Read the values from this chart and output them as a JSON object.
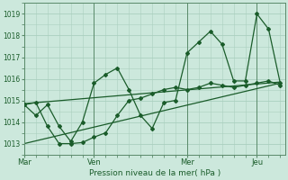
{
  "title": "",
  "xlabel": "Pression niveau de la mer( hPa )",
  "bg_color": "#cce8dc",
  "grid_color": "#aacfbf",
  "line_color": "#1a5c2a",
  "text_color": "#1a5c2a",
  "ylim": [
    1012.5,
    1019.5
  ],
  "yticks": [
    1013,
    1014,
    1015,
    1016,
    1017,
    1018,
    1019
  ],
  "x_ticks": [
    0,
    3,
    7,
    10
  ],
  "x_tick_labels": [
    "Mar",
    "Ven",
    "Mer",
    "Jeu"
  ],
  "vlines": [
    0,
    3,
    7,
    10
  ],
  "series1_x": [
    0,
    0.5,
    1,
    1.5,
    2,
    2.5,
    3,
    3.5,
    4,
    4.5,
    5,
    5.5,
    6,
    6.5,
    7,
    7.5,
    8,
    8.5,
    9,
    9.5,
    10,
    10.5,
    11
  ],
  "series1_y": [
    1014.8,
    1014.3,
    1014.8,
    1013.8,
    1013.1,
    1014.0,
    1015.8,
    1016.2,
    1016.5,
    1015.5,
    1014.3,
    1013.7,
    1014.9,
    1015.0,
    1017.2,
    1017.7,
    1018.2,
    1017.6,
    1015.9,
    1015.9,
    1019.0,
    1018.3,
    1015.8
  ],
  "series2_x": [
    0,
    0.5,
    1,
    1.5,
    2,
    2.5,
    3,
    3.5,
    4,
    4.5,
    5,
    5.5,
    6,
    6.5,
    7,
    7.5,
    8,
    8.5,
    9,
    9.5,
    10,
    10.5,
    11
  ],
  "series2_y": [
    1014.8,
    1014.9,
    1013.8,
    1013.0,
    1013.0,
    1013.05,
    1013.3,
    1013.5,
    1014.3,
    1015.0,
    1015.1,
    1015.3,
    1015.5,
    1015.6,
    1015.5,
    1015.6,
    1015.8,
    1015.7,
    1015.6,
    1015.7,
    1015.8,
    1015.9,
    1015.7
  ],
  "trend1_x": [
    0,
    11
  ],
  "trend1_y": [
    1014.85,
    1015.85
  ],
  "trend2_x": [
    0,
    11
  ],
  "trend2_y": [
    1013.0,
    1015.8
  ],
  "xlim": [
    0,
    11.2
  ]
}
